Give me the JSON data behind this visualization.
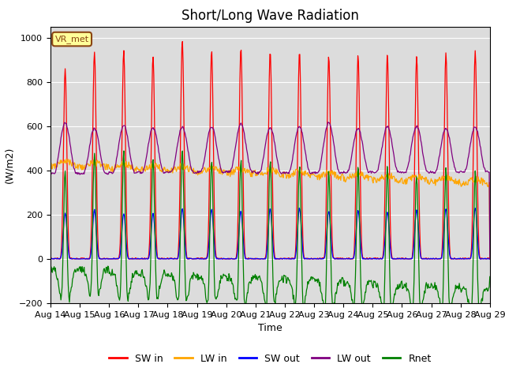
{
  "title": "Short/Long Wave Radiation",
  "ylabel": "(W/m2)",
  "xlabel": "Time",
  "ylim": [
    -200,
    1050
  ],
  "x_tick_labels": [
    "Aug 14",
    "Aug 15",
    "Aug 16",
    "Aug 17",
    "Aug 18",
    "Aug 19",
    "Aug 20",
    "Aug 21",
    "Aug 22",
    "Aug 23",
    "Aug 24",
    "Aug 25",
    "Aug 26",
    "Aug 27",
    "Aug 28",
    "Aug 29"
  ],
  "annotation_text": "VR_met",
  "annotation_color": "#8B4513",
  "annotation_bg": "#FFFF99",
  "background_color": "#DCDCDC",
  "legend_entries": [
    "SW in",
    "LW in",
    "SW out",
    "LW out",
    "Rnet"
  ],
  "legend_colors": [
    "red",
    "orange",
    "blue",
    "purple",
    "green"
  ],
  "title_fontsize": 12,
  "label_fontsize": 9,
  "tick_fontsize": 8,
  "num_days": 15
}
